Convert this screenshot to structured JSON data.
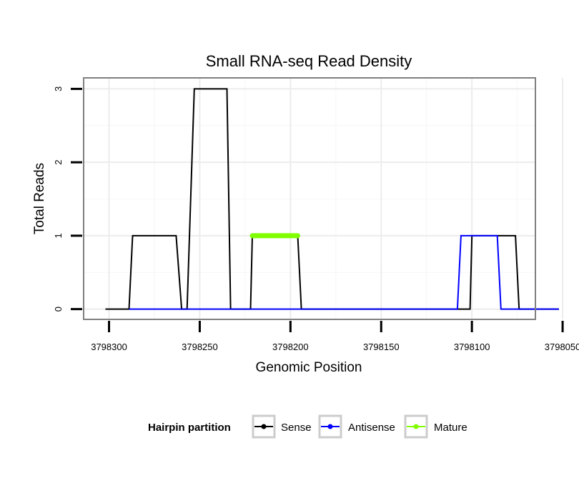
{
  "chart_data": {
    "type": "line",
    "title": "Small RNA-seq Read Density",
    "xlabel": "Genomic Position",
    "ylabel": "Total Reads",
    "xlim": [
      3798314,
      3798065
    ],
    "ylim": [
      -0.14,
      3.15
    ],
    "x_reversed": true,
    "grid": true,
    "x_ticks": [
      3798300,
      3798250,
      3798200,
      3798150,
      3798100,
      3798050
    ],
    "x_tick_labels": [
      "3798300",
      "3798250",
      "3798200",
      "3798150",
      "3798100",
      "3798050"
    ],
    "y_ticks": [
      0,
      1,
      2,
      3
    ],
    "y_tick_labels": [
      "0",
      "1",
      "2",
      "3"
    ],
    "legend": {
      "title": "Hairpin partition",
      "position": "bottom",
      "entries": [
        "Sense",
        "Antisense",
        "Mature"
      ]
    },
    "series": [
      {
        "name": "Sense",
        "color": "#000000",
        "x": [
          3798302,
          3798289,
          3798287,
          3798263,
          3798260,
          3798257,
          3798253,
          3798235,
          3798233,
          3798222,
          3798221,
          3798196,
          3798194,
          3798130,
          3798101,
          3798100,
          3798093,
          3798076,
          3798074,
          3798052
        ],
        "y": [
          0,
          0,
          1,
          1,
          0,
          0,
          3,
          3,
          0,
          0,
          1,
          1,
          0,
          0,
          0,
          1,
          1,
          1,
          0,
          0
        ]
      },
      {
        "name": "Antisense",
        "color": "#0000ff",
        "x": [
          3798289,
          3798108,
          3798106,
          3798093,
          3798086,
          3798084,
          3798052
        ],
        "y": [
          0,
          0,
          1,
          1,
          1,
          0,
          0
        ]
      },
      {
        "name": "Mature",
        "color": "#7fff00",
        "x": [
          3798221,
          3798196
        ],
        "y": [
          1,
          1
        ]
      }
    ]
  }
}
